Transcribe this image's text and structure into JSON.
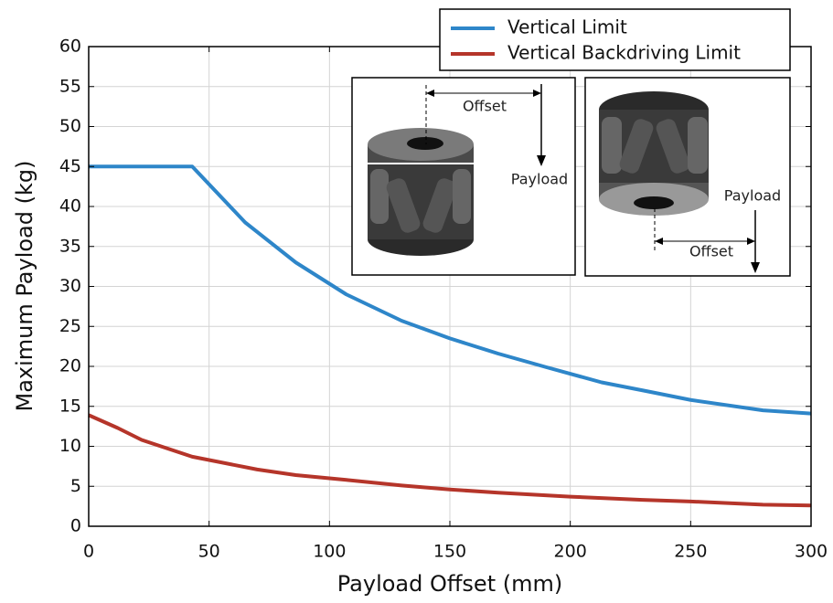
{
  "chart_data": {
    "type": "line",
    "x_label": "Payload Offset (mm)",
    "y_label": "Maximum Payload (kg)",
    "xlim": [
      0,
      300
    ],
    "xticks": [
      0,
      50,
      100,
      150,
      200,
      250,
      300
    ],
    "ylim": [
      0,
      60
    ],
    "yticks": [
      0,
      5,
      10,
      15,
      20,
      25,
      30,
      35,
      40,
      45,
      50,
      55,
      60
    ],
    "grid": true,
    "legend": "top-right",
    "series": [
      {
        "name": "Vertical Limit",
        "color": "#2e86c9",
        "x": [
          0,
          43,
          65,
          86,
          107,
          130,
          150,
          170,
          190,
          213,
          230,
          250,
          280,
          300
        ],
        "values": [
          45,
          45,
          38,
          33,
          29,
          25.7,
          23.5,
          21.6,
          19.9,
          18,
          17,
          15.8,
          14.5,
          14.1
        ]
      },
      {
        "name": "Vertical Backdriving Limit",
        "color": "#b5352a",
        "x": [
          0,
          12,
          22,
          43,
          70,
          86,
          107,
          130,
          150,
          170,
          200,
          230,
          250,
          280,
          300
        ],
        "values": [
          13.9,
          12.3,
          10.8,
          8.7,
          7.1,
          6.4,
          5.8,
          5.1,
          4.6,
          4.2,
          3.7,
          3.3,
          3.1,
          2.7,
          2.6
        ]
      }
    ],
    "annotations": [
      "Offset",
      "Payload",
      "Payload",
      "Offset"
    ]
  }
}
